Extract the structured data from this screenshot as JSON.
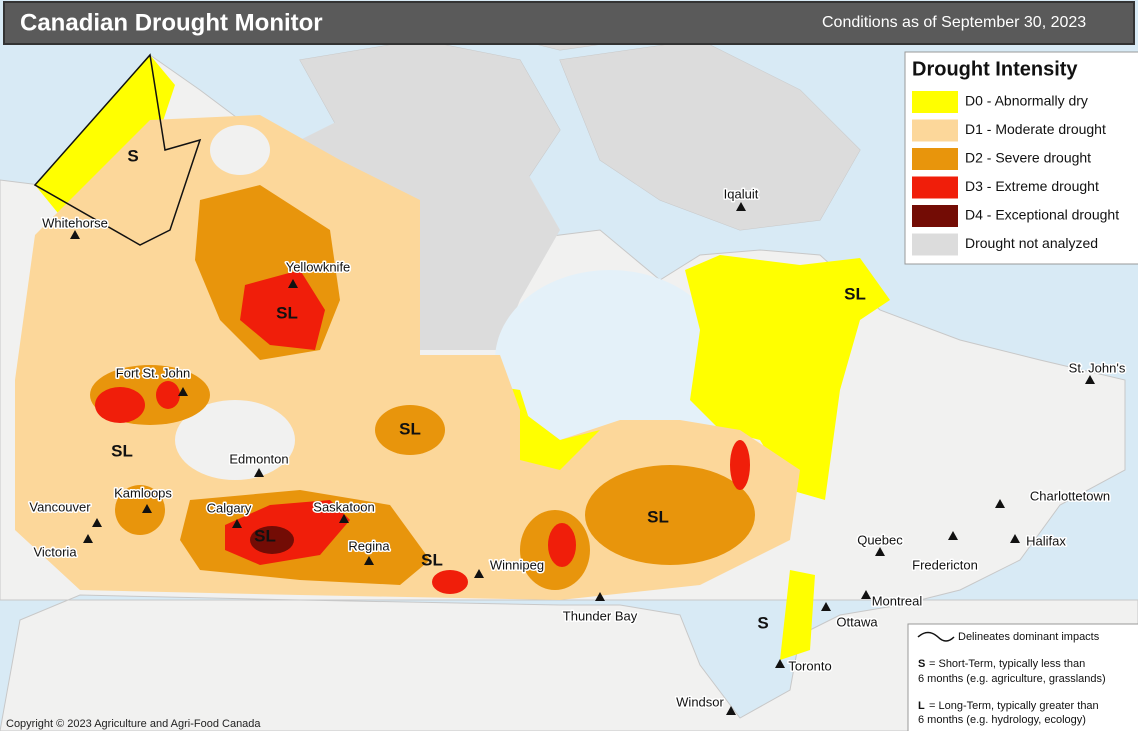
{
  "header": {
    "title": "Canadian Drought Monitor",
    "date": "Conditions as of September 30, 2023"
  },
  "legend": {
    "title": "Drought Intensity",
    "items": [
      {
        "label": "D0 - Abnormally dry",
        "color": "#ffff00"
      },
      {
        "label": "D1 - Moderate drought",
        "color": "#fcd79a"
      },
      {
        "label": "D2 - Severe drought",
        "color": "#e8950c"
      },
      {
        "label": "D3 - Extreme drought",
        "color": "#f01e0a"
      },
      {
        "label": "D4 - Exceptional drought",
        "color": "#730c05"
      },
      {
        "label": "Drought not analyzed",
        "color": "#dcdcdc"
      }
    ]
  },
  "region_labels": [
    "S",
    "SL",
    "SL",
    "SL",
    "SL",
    "SL",
    "SL",
    "SL",
    "S"
  ],
  "cities": [
    "Whitehorse",
    "Yellowknife",
    "Iqaluit",
    "Fort St. John",
    "Edmonton",
    "Kamloops",
    "Calgary",
    "Saskatoon",
    "Regina",
    "Winnipeg",
    "Vancouver",
    "Victoria",
    "Thunder Bay",
    "Toronto",
    "Ottawa",
    "Montreal",
    "Quebec",
    "Fredericton",
    "Halifax",
    "Charlottetown",
    "St. John's",
    "Windsor"
  ],
  "notes": {
    "line": "Delineates dominant impacts",
    "short_key": "S",
    "short_text": [
      "= Short-Term, typically less than",
      "6 months (e.g. agriculture, grasslands)"
    ],
    "long_key": "L",
    "long_text": [
      "= Long-Term, typically greater than",
      "6 months (e.g. hydrology, ecology)"
    ]
  },
  "copyright": "Copyright © 2023 Agriculture and Agri-Food Canada"
}
